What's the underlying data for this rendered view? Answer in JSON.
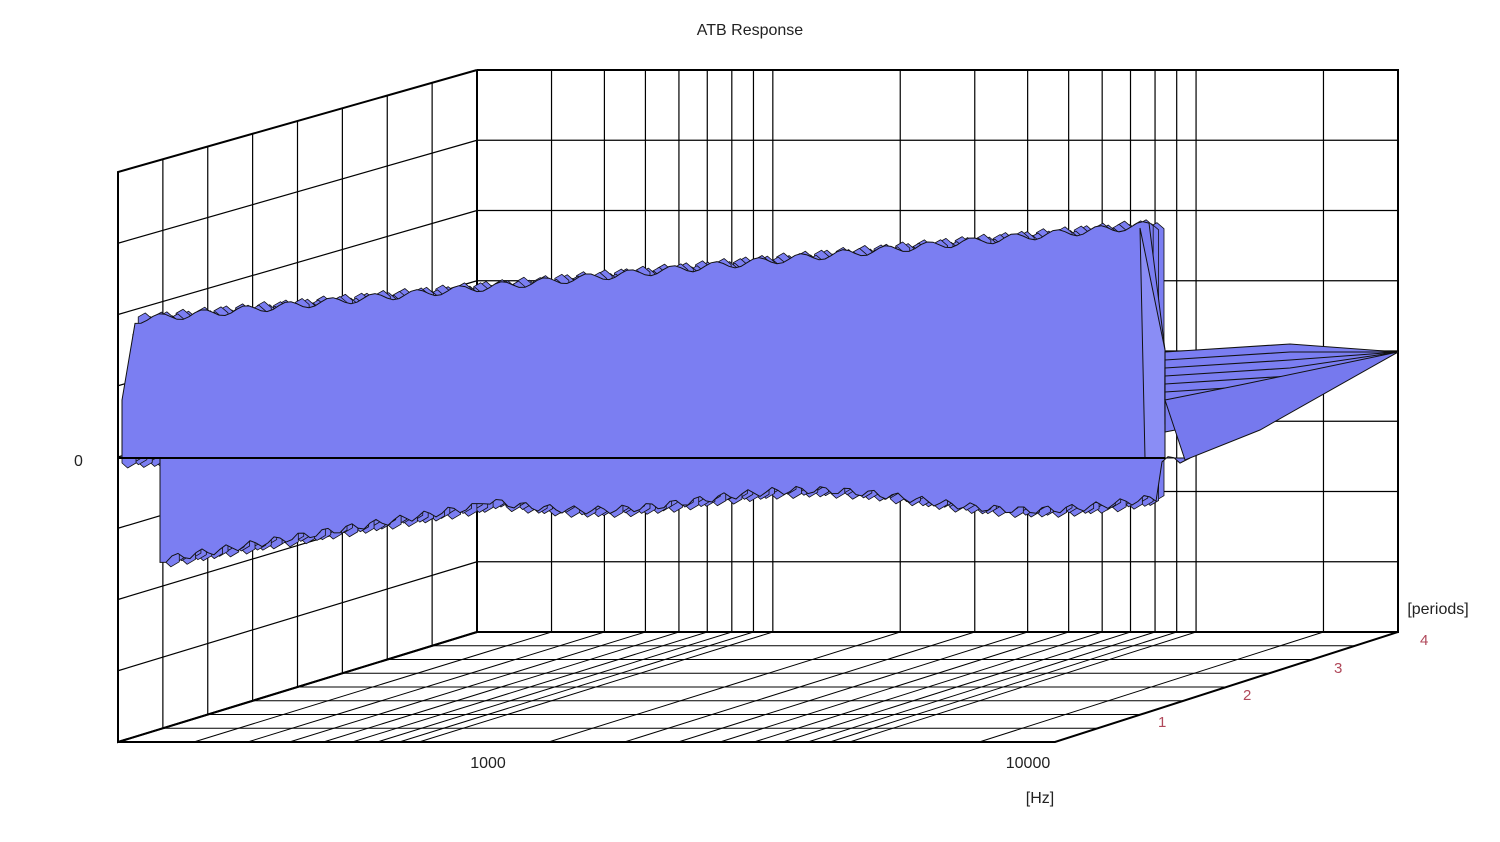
{
  "chart_data": {
    "type": "waterfall-3d",
    "title": "ATB Response",
    "x_axis": {
      "unit_label": "[Hz]",
      "scale": "log",
      "range": [
        200,
        30000
      ],
      "tick_labels": [
        "1000",
        "10000"
      ]
    },
    "y_axis": {
      "tick_labels": [
        "0"
      ],
      "gridlines": true
    },
    "z_axis": {
      "unit_label": "[periods]",
      "range": [
        0,
        4
      ],
      "tick_labels": [
        "1",
        "2",
        "3",
        "4"
      ]
    },
    "surface": {
      "fill_color": "#7b7ef2",
      "edge_color": "#111111",
      "cutoff_hz": 7000
    },
    "grid": true,
    "colors": {
      "grid": "#000000",
      "surface": "#7b7ef2",
      "z_ticks": "#b0485a"
    }
  }
}
